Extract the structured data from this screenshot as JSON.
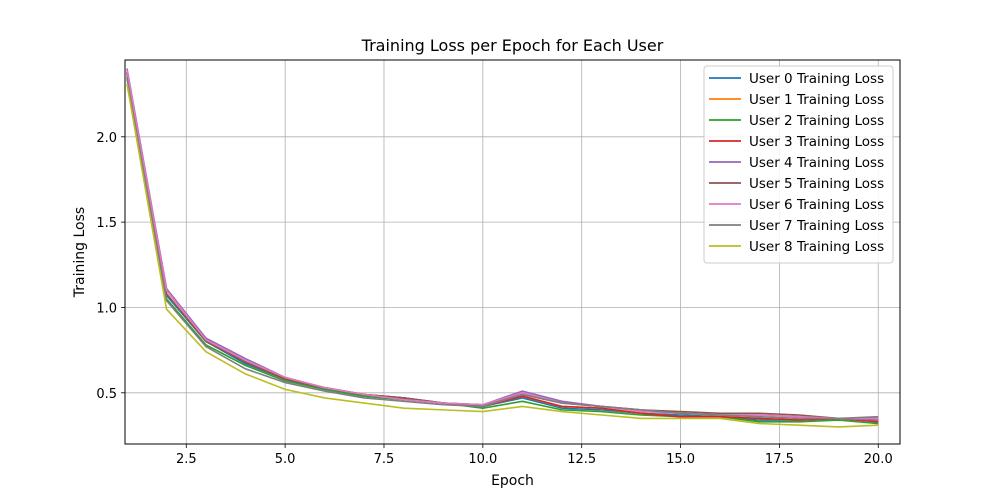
{
  "chart_data": {
    "type": "line",
    "title": "Training Loss per Epoch for Each User",
    "xlabel": "Epoch",
    "ylabel": "Training Loss",
    "xlim": [
      0.95,
      20.55
    ],
    "ylim": [
      0.2,
      2.45
    ],
    "xticks": [
      2.5,
      5.0,
      7.5,
      10.0,
      12.5,
      15.0,
      17.5,
      20.0
    ],
    "xtick_labels": [
      "2.5",
      "5.0",
      "7.5",
      "10.0",
      "12.5",
      "15.0",
      "17.5",
      "20.0"
    ],
    "yticks": [
      0.5,
      1.0,
      1.5,
      2.0
    ],
    "ytick_labels": [
      "0.5",
      "1.0",
      "1.5",
      "2.0"
    ],
    "grid": true,
    "legend_position": "top-right",
    "x": [
      1,
      2,
      3,
      4,
      5,
      6,
      7,
      8,
      9,
      10,
      11,
      12,
      13,
      14,
      15,
      16,
      17,
      18,
      19,
      20
    ],
    "series": [
      {
        "name": "User 0 Training Loss",
        "color": "#1f77b4",
        "values": [
          2.37,
          1.07,
          0.8,
          0.67,
          0.58,
          0.52,
          0.48,
          0.46,
          0.44,
          0.42,
          0.47,
          0.41,
          0.4,
          0.38,
          0.37,
          0.36,
          0.34,
          0.34,
          0.35,
          0.33
        ]
      },
      {
        "name": "User 1 Training Loss",
        "color": "#ff7f0e",
        "values": [
          2.38,
          1.1,
          0.81,
          0.68,
          0.58,
          0.53,
          0.49,
          0.47,
          0.44,
          0.42,
          0.48,
          0.42,
          0.41,
          0.38,
          0.36,
          0.36,
          0.35,
          0.34,
          0.35,
          0.33
        ]
      },
      {
        "name": "User 2 Training Loss",
        "color": "#2ca02c",
        "values": [
          2.35,
          1.05,
          0.78,
          0.66,
          0.57,
          0.52,
          0.48,
          0.46,
          0.44,
          0.41,
          0.45,
          0.4,
          0.39,
          0.37,
          0.36,
          0.36,
          0.33,
          0.33,
          0.34,
          0.32
        ]
      },
      {
        "name": "User 3 Training Loss",
        "color": "#d62728",
        "values": [
          2.38,
          1.11,
          0.81,
          0.68,
          0.58,
          0.53,
          0.49,
          0.47,
          0.44,
          0.42,
          0.48,
          0.42,
          0.41,
          0.38,
          0.36,
          0.36,
          0.35,
          0.34,
          0.35,
          0.33
        ]
      },
      {
        "name": "User 4 Training Loss",
        "color": "#9467bd",
        "values": [
          2.4,
          1.11,
          0.82,
          0.7,
          0.59,
          0.53,
          0.49,
          0.47,
          0.44,
          0.43,
          0.51,
          0.45,
          0.42,
          0.4,
          0.38,
          0.37,
          0.37,
          0.36,
          0.35,
          0.34
        ]
      },
      {
        "name": "User 5 Training Loss",
        "color": "#8c564b",
        "values": [
          2.37,
          1.08,
          0.8,
          0.68,
          0.58,
          0.53,
          0.49,
          0.47,
          0.44,
          0.43,
          0.49,
          0.44,
          0.42,
          0.4,
          0.39,
          0.38,
          0.38,
          0.37,
          0.35,
          0.35
        ]
      },
      {
        "name": "User 6 Training Loss",
        "color": "#e377c2",
        "values": [
          2.39,
          1.1,
          0.81,
          0.69,
          0.59,
          0.53,
          0.49,
          0.46,
          0.44,
          0.43,
          0.5,
          0.44,
          0.42,
          0.39,
          0.38,
          0.37,
          0.37,
          0.36,
          0.35,
          0.35
        ]
      },
      {
        "name": "User 7 Training Loss",
        "color": "#7f7f7f",
        "values": [
          2.34,
          1.04,
          0.77,
          0.64,
          0.56,
          0.51,
          0.47,
          0.45,
          0.43,
          0.42,
          0.49,
          0.44,
          0.42,
          0.4,
          0.38,
          0.37,
          0.36,
          0.35,
          0.35,
          0.36
        ]
      },
      {
        "name": "User 8 Training Loss",
        "color": "#bcbd22",
        "values": [
          2.31,
          0.99,
          0.74,
          0.61,
          0.52,
          0.47,
          0.44,
          0.41,
          0.4,
          0.39,
          0.42,
          0.39,
          0.37,
          0.35,
          0.35,
          0.35,
          0.32,
          0.31,
          0.3,
          0.31
        ]
      }
    ]
  }
}
